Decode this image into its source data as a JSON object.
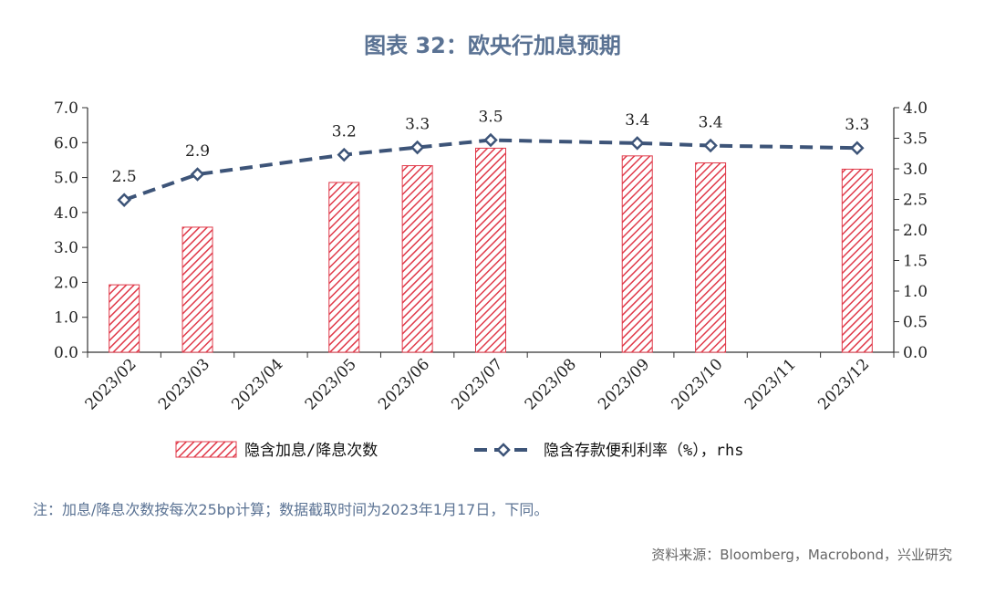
{
  "title": "图表 32：欧央行加息预期",
  "note": "注：加息/降息次数按每次25bp计算；数据截取时间为2023年1月17日，下同。",
  "source": "资料来源：Bloomberg，Macrobond，兴业研究",
  "chart_data": {
    "type": "bar",
    "categories": [
      "2023/02",
      "2023/03",
      "2023/04",
      "2023/05",
      "2023/06",
      "2023/07",
      "2023/08",
      "2023/09",
      "2023/10",
      "2023/11",
      "2023/12"
    ],
    "series": [
      {
        "name": "隐含加息/降息次数",
        "type": "bar",
        "axis": "left",
        "values": [
          1.93,
          3.58,
          null,
          4.86,
          5.34,
          5.84,
          null,
          5.62,
          5.42,
          null,
          5.24
        ]
      },
      {
        "name": "隐含存款便利利率（%），rhs",
        "type": "line",
        "axis": "right",
        "values": [
          2.49,
          2.91,
          null,
          3.23,
          3.35,
          3.47,
          null,
          3.42,
          3.38,
          null,
          3.34
        ],
        "labels": [
          "2.5",
          "2.9",
          "",
          "3.2",
          "3.3",
          "3.5",
          "",
          "3.4",
          "3.4",
          "",
          "3.3"
        ]
      }
    ],
    "y_left": {
      "range": [
        0,
        7
      ],
      "ticks": [
        "0.0",
        "1.0",
        "2.0",
        "3.0",
        "4.0",
        "5.0",
        "6.0",
        "7.0"
      ]
    },
    "y_right": {
      "range": [
        0,
        4
      ],
      "ticks": [
        "0.0",
        "0.5",
        "1.0",
        "1.5",
        "2.0",
        "2.5",
        "3.0",
        "3.5",
        "4.0"
      ]
    },
    "legend_position": "bottom",
    "grid": false,
    "colors": {
      "bar": "#e03a4a",
      "line": "#3d5478",
      "title": "#5a7293"
    }
  }
}
